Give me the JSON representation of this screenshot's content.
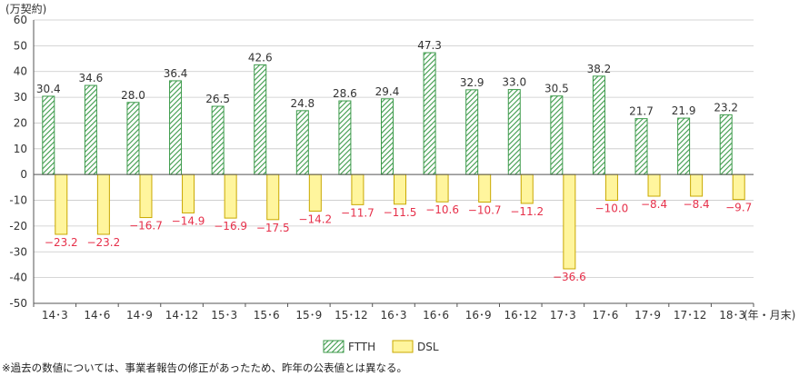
{
  "chart_data": {
    "type": "bar",
    "ylabel": "(万契約)",
    "xunit": "(年・月末)",
    "ylim": [
      -50,
      60
    ],
    "yticks": [
      60,
      50,
      40,
      30,
      20,
      10,
      0,
      -10,
      -20,
      -30,
      -40,
      -50
    ],
    "categories": [
      "14･3",
      "14･6",
      "14･9",
      "14･12",
      "15･3",
      "15･6",
      "15･9",
      "15･12",
      "16･3",
      "16･6",
      "16･9",
      "16･12",
      "17･3",
      "17･6",
      "17･9",
      "17･12",
      "18･3"
    ],
    "series": [
      {
        "name": "FTTH",
        "values": [
          30.4,
          34.6,
          28.0,
          36.4,
          26.5,
          42.6,
          24.8,
          28.6,
          29.4,
          47.3,
          32.9,
          33.0,
          30.5,
          38.2,
          21.7,
          21.9,
          23.2
        ],
        "labels": [
          "30.4",
          "34.6",
          "28.0",
          "36.4",
          "26.5",
          "42.6",
          "24.8",
          "28.6",
          "29.4",
          "47.3",
          "32.9",
          "33.0",
          "30.5",
          "38.2",
          "21.7",
          "21.9",
          "23.2"
        ]
      },
      {
        "name": "DSL",
        "values": [
          -23.2,
          -23.2,
          -16.7,
          -14.9,
          -16.9,
          -17.5,
          -14.2,
          -11.7,
          -11.5,
          -10.6,
          -10.7,
          -11.2,
          -36.6,
          -10.0,
          -8.4,
          -8.4,
          -9.7
        ],
        "labels": [
          "−23.2",
          "−23.2",
          "−16.7",
          "−14.9",
          "−16.9",
          "−17.5",
          "−14.2",
          "−11.7",
          "−11.5",
          "−10.6",
          "−10.7",
          "−11.2",
          "−36.6",
          "−10.0",
          "−8.4",
          "−8.4",
          "−9.7"
        ]
      }
    ],
    "colors": {
      "ftth_stroke": "#3c9a4a",
      "ftth_stripe": "#3c9a4a",
      "dsl_fill": "#fff59d",
      "dsl_stroke": "#c9a800",
      "negative_label": "#e6304a",
      "axis": "#555555",
      "grid": "#c8c8c8"
    },
    "legend": [
      "FTTH",
      "DSL"
    ],
    "legend_position": "bottom-center",
    "grid": true
  },
  "footnote": "※過去の数値については、事業者報告の修正があったため、昨年の公表値とは異なる。"
}
